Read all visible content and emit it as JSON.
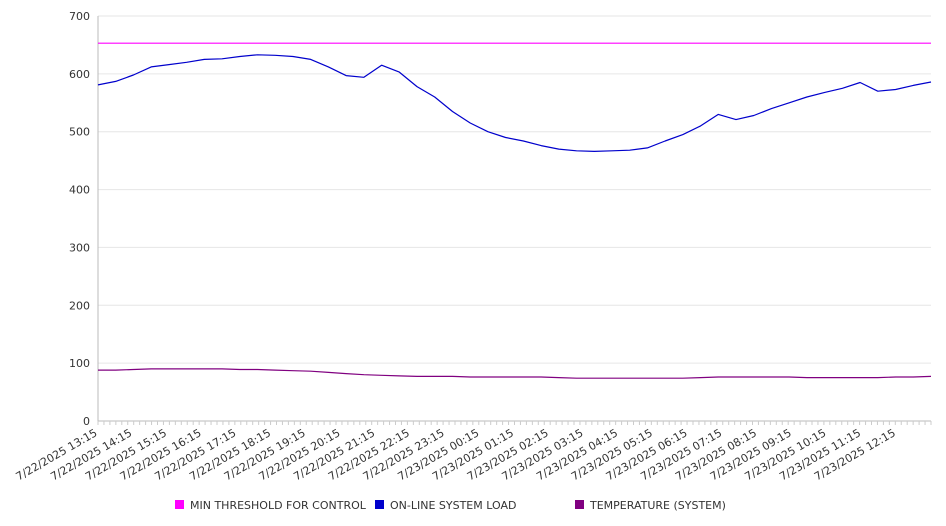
{
  "chart_data": {
    "type": "line",
    "title": "",
    "xlabel": "",
    "ylabel": "",
    "ylim": [
      0,
      700
    ],
    "yticks": [
      0,
      100,
      200,
      300,
      400,
      500,
      600,
      700
    ],
    "grid": true,
    "legend_position": "bottom",
    "x_tick_labels": [
      "7/22/2025 13:15",
      "7/22/2025 14:15",
      "7/22/2025 15:15",
      "7/22/2025 16:15",
      "7/22/2025 17:15",
      "7/22/2025 18:15",
      "7/22/2025 19:15",
      "7/22/2025 20:15",
      "7/22/2025 21:15",
      "7/22/2025 22:15",
      "7/22/2025 23:15",
      "7/23/2025 00:15",
      "7/23/2025 01:15",
      "7/23/2025 02:15",
      "7/23/2025 03:15",
      "7/23/2025 04:15",
      "7/23/2025 05:15",
      "7/23/2025 06:15",
      "7/23/2025 07:15",
      "7/23/2025 08:15",
      "7/23/2025 09:15",
      "7/23/2025 10:15",
      "7/23/2025 11:15",
      "7/23/2025 12:15"
    ],
    "x": [
      "7/22/2025 13:15",
      "7/22/2025 13:45",
      "7/22/2025 14:15",
      "7/22/2025 14:45",
      "7/22/2025 15:15",
      "7/22/2025 15:45",
      "7/22/2025 16:15",
      "7/22/2025 16:45",
      "7/22/2025 17:15",
      "7/22/2025 17:45",
      "7/22/2025 18:15",
      "7/22/2025 18:45",
      "7/22/2025 19:15",
      "7/22/2025 19:45",
      "7/22/2025 20:15",
      "7/22/2025 20:45",
      "7/22/2025 21:15",
      "7/22/2025 21:45",
      "7/22/2025 22:15",
      "7/22/2025 22:45",
      "7/22/2025 23:15",
      "7/22/2025 23:45",
      "7/23/2025 00:15",
      "7/23/2025 00:45",
      "7/23/2025 01:15",
      "7/23/2025 01:45",
      "7/23/2025 02:15",
      "7/23/2025 02:45",
      "7/23/2025 03:15",
      "7/23/2025 03:45",
      "7/23/2025 04:15",
      "7/23/2025 04:45",
      "7/23/2025 05:15",
      "7/23/2025 05:45",
      "7/23/2025 06:15",
      "7/23/2025 06:45",
      "7/23/2025 07:15",
      "7/23/2025 07:45",
      "7/23/2025 08:15",
      "7/23/2025 08:45",
      "7/23/2025 09:15",
      "7/23/2025 09:45",
      "7/23/2025 10:15",
      "7/23/2025 10:45",
      "7/23/2025 11:15",
      "7/23/2025 11:45",
      "7/23/2025 12:15",
      "7/23/2025 12:45"
    ],
    "series": [
      {
        "name": "MIN THRESHOLD FOR CONTROL",
        "color": "#ff00ff",
        "values": [
          653,
          653,
          653,
          653,
          653,
          653,
          653,
          653,
          653,
          653,
          653,
          653,
          653,
          653,
          653,
          653,
          653,
          653,
          653,
          653,
          653,
          653,
          653,
          653,
          653,
          653,
          653,
          653,
          653,
          653,
          653,
          653,
          653,
          653,
          653,
          653,
          653,
          653,
          653,
          653,
          653,
          653,
          653,
          653,
          653,
          653,
          653,
          653
        ]
      },
      {
        "name": "ON-LINE SYSTEM LOAD",
        "color": "#0000cc",
        "values": [
          581,
          587,
          598,
          612,
          616,
          620,
          625,
          626,
          630,
          633,
          632,
          630,
          625,
          612,
          597,
          594,
          615,
          603,
          578,
          560,
          535,
          515,
          500,
          490,
          484,
          476,
          470,
          467,
          466,
          467,
          468,
          472,
          484,
          495,
          510,
          530,
          521,
          528,
          540,
          550,
          560,
          568,
          575,
          585,
          570,
          573,
          580,
          586
        ]
      },
      {
        "name": "TEMPERATURE (SYSTEM)",
        "color": "#800080",
        "values": [
          88,
          88,
          89,
          90,
          90,
          90,
          90,
          90,
          89,
          89,
          88,
          87,
          86,
          84,
          82,
          80,
          79,
          78,
          77,
          77,
          77,
          76,
          76,
          76,
          76,
          76,
          75,
          74,
          74,
          74,
          74,
          74,
          74,
          74,
          75,
          76,
          76,
          76,
          76,
          76,
          75,
          75,
          75,
          75,
          75,
          76,
          76,
          77
        ]
      }
    ]
  }
}
